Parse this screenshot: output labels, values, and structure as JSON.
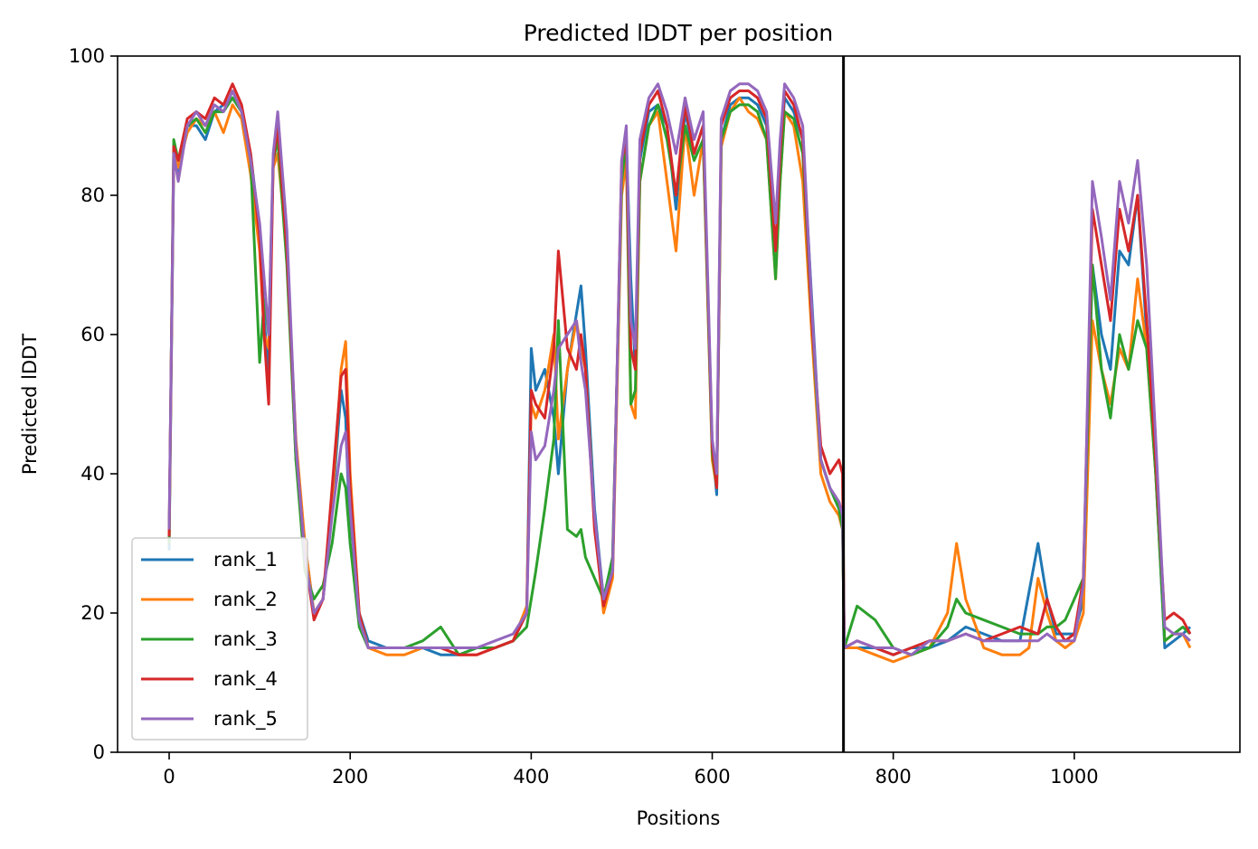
{
  "chart_data": {
    "type": "line",
    "title": "Predicted lDDT per position",
    "xlabel": "Positions",
    "ylabel": "Predicted lDDT",
    "xlim": [
      -57,
      1183
    ],
    "ylim": [
      0,
      100
    ],
    "xticks": [
      0,
      200,
      400,
      600,
      800,
      1000
    ],
    "yticks": [
      0,
      20,
      40,
      60,
      80,
      100
    ],
    "grid": false,
    "legend_position": "lower-left",
    "vline": 745,
    "series": [
      {
        "name": "rank_1",
        "color": "#1f77b4",
        "x": [
          0,
          5,
          10,
          20,
          30,
          40,
          50,
          60,
          70,
          80,
          90,
          100,
          105,
          110,
          115,
          120,
          130,
          140,
          150,
          160,
          170,
          180,
          190,
          195,
          200,
          210,
          220,
          240,
          260,
          280,
          300,
          320,
          340,
          360,
          380,
          395,
          400,
          405,
          415,
          425,
          430,
          440,
          450,
          455,
          460,
          470,
          480,
          490,
          500,
          505,
          510,
          515,
          520,
          530,
          540,
          550,
          560,
          570,
          580,
          590,
          600,
          605,
          610,
          620,
          630,
          640,
          650,
          660,
          670,
          675,
          680,
          690,
          700,
          710,
          720,
          730,
          740,
          744,
          746,
          760,
          780,
          800,
          820,
          840,
          860,
          880,
          900,
          920,
          940,
          960,
          970,
          980,
          990,
          1000,
          1010,
          1020,
          1030,
          1040,
          1050,
          1060,
          1070,
          1080,
          1090,
          1100,
          1110,
          1120,
          1128
        ],
        "y": [
          29,
          85,
          83,
          90,
          90,
          88,
          92,
          93,
          94,
          92,
          86,
          75,
          62,
          55,
          85,
          88,
          72,
          42,
          30,
          20,
          22,
          35,
          52,
          48,
          30,
          20,
          16,
          15,
          15,
          15,
          14,
          14,
          15,
          15,
          16,
          20,
          58,
          52,
          55,
          48,
          40,
          55,
          63,
          67,
          58,
          35,
          22,
          28,
          82,
          88,
          68,
          55,
          85,
          92,
          93,
          90,
          78,
          92,
          86,
          90,
          44,
          37,
          88,
          93,
          94,
          94,
          93,
          90,
          72,
          85,
          94,
          92,
          88,
          65,
          42,
          38,
          35,
          33,
          15,
          15,
          15,
          14,
          15,
          15,
          16,
          18,
          17,
          16,
          16,
          30,
          22,
          17,
          17,
          17,
          22,
          70,
          60,
          55,
          72,
          70,
          80,
          60,
          40,
          15,
          16,
          17,
          18
        ]
      },
      {
        "name": "rank_2",
        "color": "#ff7f0e",
        "x": [
          0,
          5,
          10,
          20,
          30,
          40,
          50,
          60,
          70,
          80,
          90,
          100,
          105,
          110,
          115,
          120,
          130,
          140,
          150,
          160,
          170,
          180,
          190,
          195,
          200,
          210,
          220,
          240,
          260,
          280,
          300,
          320,
          340,
          360,
          380,
          395,
          400,
          405,
          415,
          425,
          430,
          440,
          450,
          455,
          460,
          470,
          480,
          490,
          500,
          505,
          510,
          515,
          520,
          530,
          540,
          550,
          560,
          570,
          580,
          590,
          600,
          605,
          610,
          620,
          630,
          640,
          650,
          660,
          670,
          675,
          680,
          690,
          700,
          710,
          720,
          730,
          740,
          744,
          746,
          760,
          780,
          800,
          820,
          840,
          860,
          870,
          880,
          900,
          920,
          940,
          950,
          960,
          970,
          980,
          990,
          1000,
          1010,
          1020,
          1030,
          1040,
          1050,
          1060,
          1070,
          1080,
          1090,
          1100,
          1110,
          1120,
          1128
        ],
        "y": [
          30,
          86,
          84,
          89,
          91,
          90,
          92,
          89,
          93,
          91,
          83,
          72,
          60,
          58,
          84,
          86,
          72,
          45,
          30,
          20,
          22,
          36,
          55,
          59,
          40,
          20,
          15,
          14,
          14,
          15,
          15,
          14,
          14,
          15,
          16,
          21,
          50,
          48,
          52,
          60,
          45,
          55,
          62,
          58,
          55,
          33,
          20,
          25,
          80,
          85,
          50,
          48,
          82,
          90,
          92,
          82,
          72,
          90,
          80,
          88,
          42,
          38,
          87,
          92,
          94,
          92,
          91,
          88,
          68,
          82,
          92,
          90,
          82,
          60,
          40,
          36,
          34,
          32,
          15,
          15,
          14,
          13,
          14,
          15,
          20,
          30,
          22,
          15,
          14,
          14,
          15,
          25,
          20,
          16,
          15,
          16,
          20,
          62,
          55,
          50,
          58,
          55,
          68,
          58,
          40,
          16,
          17,
          17,
          15
        ]
      },
      {
        "name": "rank_3",
        "color": "#2ca02c",
        "x": [
          0,
          5,
          10,
          20,
          30,
          40,
          50,
          60,
          70,
          80,
          90,
          100,
          105,
          110,
          115,
          120,
          130,
          140,
          150,
          160,
          170,
          180,
          190,
          195,
          200,
          210,
          220,
          240,
          260,
          280,
          300,
          320,
          340,
          360,
          380,
          395,
          400,
          405,
          415,
          425,
          430,
          440,
          450,
          455,
          460,
          470,
          480,
          490,
          500,
          505,
          510,
          515,
          520,
          530,
          540,
          550,
          560,
          570,
          580,
          590,
          600,
          605,
          610,
          620,
          630,
          640,
          650,
          660,
          670,
          675,
          680,
          690,
          700,
          710,
          720,
          730,
          740,
          744,
          746,
          760,
          780,
          800,
          820,
          840,
          860,
          870,
          880,
          900,
          920,
          940,
          960,
          970,
          980,
          990,
          1000,
          1010,
          1020,
          1030,
          1040,
          1050,
          1060,
          1070,
          1080,
          1090,
          1100,
          1110,
          1120,
          1128
        ],
        "y": [
          30,
          88,
          85,
          90,
          91,
          89,
          92,
          92,
          94,
          92,
          85,
          56,
          65,
          60,
          85,
          88,
          70,
          42,
          26,
          22,
          24,
          30,
          40,
          38,
          30,
          18,
          15,
          15,
          15,
          16,
          18,
          14,
          15,
          15,
          16,
          18,
          22,
          26,
          35,
          45,
          62,
          32,
          31,
          32,
          28,
          25,
          22,
          28,
          82,
          88,
          50,
          52,
          82,
          90,
          93,
          88,
          80,
          90,
          85,
          88,
          43,
          38,
          88,
          92,
          93,
          93,
          92,
          88,
          68,
          82,
          92,
          91,
          86,
          62,
          42,
          38,
          35,
          32,
          15,
          21,
          19,
          15,
          14,
          15,
          18,
          22,
          20,
          19,
          18,
          17,
          17,
          18,
          18,
          19,
          22,
          25,
          70,
          55,
          48,
          60,
          55,
          62,
          58,
          40,
          16,
          17,
          18,
          17
        ]
      },
      {
        "name": "rank_4",
        "color": "#d62728",
        "x": [
          0,
          5,
          10,
          20,
          30,
          40,
          50,
          60,
          70,
          80,
          90,
          100,
          105,
          110,
          115,
          120,
          130,
          140,
          150,
          160,
          170,
          180,
          190,
          195,
          200,
          210,
          220,
          240,
          260,
          280,
          300,
          320,
          340,
          360,
          380,
          395,
          400,
          405,
          415,
          425,
          430,
          440,
          450,
          455,
          460,
          470,
          480,
          490,
          500,
          505,
          510,
          515,
          520,
          530,
          540,
          550,
          560,
          570,
          580,
          590,
          600,
          605,
          610,
          620,
          630,
          640,
          650,
          660,
          670,
          675,
          680,
          690,
          700,
          710,
          720,
          730,
          740,
          744,
          746,
          760,
          780,
          800,
          820,
          840,
          860,
          880,
          900,
          920,
          940,
          960,
          970,
          980,
          990,
          1000,
          1010,
          1020,
          1030,
          1040,
          1050,
          1060,
          1070,
          1080,
          1090,
          1100,
          1110,
          1120,
          1128
        ],
        "y": [
          31,
          87,
          85,
          91,
          92,
          91,
          94,
          93,
          96,
          93,
          86,
          74,
          60,
          50,
          85,
          90,
          72,
          44,
          28,
          19,
          22,
          38,
          54,
          55,
          38,
          20,
          15,
          15,
          15,
          15,
          15,
          14,
          14,
          15,
          16,
          20,
          52,
          50,
          48,
          58,
          72,
          58,
          55,
          60,
          55,
          32,
          21,
          26,
          85,
          88,
          58,
          55,
          86,
          93,
          95,
          90,
          80,
          93,
          86,
          90,
          44,
          38,
          90,
          94,
          95,
          95,
          94,
          91,
          72,
          86,
          95,
          93,
          88,
          62,
          44,
          40,
          42,
          40,
          15,
          16,
          15,
          14,
          15,
          16,
          16,
          17,
          16,
          17,
          18,
          17,
          22,
          18,
          16,
          17,
          25,
          78,
          70,
          62,
          78,
          72,
          80,
          62,
          42,
          19,
          20,
          19,
          17
        ]
      },
      {
        "name": "rank_5",
        "color": "#9467bd",
        "x": [
          0,
          5,
          10,
          20,
          30,
          40,
          50,
          60,
          70,
          80,
          90,
          100,
          105,
          110,
          115,
          120,
          130,
          140,
          150,
          160,
          170,
          180,
          190,
          195,
          200,
          210,
          220,
          240,
          260,
          280,
          300,
          320,
          340,
          360,
          380,
          395,
          400,
          405,
          415,
          425,
          430,
          440,
          450,
          455,
          460,
          470,
          480,
          490,
          500,
          505,
          510,
          515,
          520,
          530,
          540,
          550,
          560,
          570,
          580,
          590,
          600,
          605,
          610,
          620,
          630,
          640,
          650,
          660,
          670,
          675,
          680,
          690,
          700,
          710,
          720,
          730,
          740,
          744,
          746,
          760,
          780,
          800,
          820,
          840,
          860,
          880,
          900,
          920,
          940,
          960,
          970,
          980,
          990,
          1000,
          1010,
          1020,
          1030,
          1040,
          1050,
          1060,
          1070,
          1080,
          1090,
          1100,
          1110,
          1120,
          1128
        ],
        "y": [
          32,
          86,
          82,
          90,
          92,
          90,
          93,
          92,
          95,
          92,
          85,
          76,
          68,
          60,
          86,
          92,
          75,
          44,
          28,
          20,
          22,
          34,
          44,
          46,
          35,
          19,
          15,
          15,
          15,
          15,
          15,
          15,
          15,
          16,
          17,
          20,
          46,
          42,
          44,
          52,
          58,
          60,
          62,
          56,
          52,
          34,
          22,
          26,
          85,
          90,
          62,
          58,
          88,
          94,
          96,
          92,
          86,
          94,
          88,
          92,
          45,
          40,
          91,
          95,
          96,
          96,
          95,
          92,
          76,
          88,
          96,
          94,
          90,
          64,
          42,
          38,
          36,
          34,
          15,
          16,
          15,
          15,
          14,
          16,
          16,
          17,
          16,
          16,
          16,
          16,
          17,
          16,
          16,
          16,
          24,
          82,
          74,
          65,
          82,
          76,
          85,
          70,
          45,
          18,
          17,
          17,
          16
        ]
      }
    ]
  }
}
